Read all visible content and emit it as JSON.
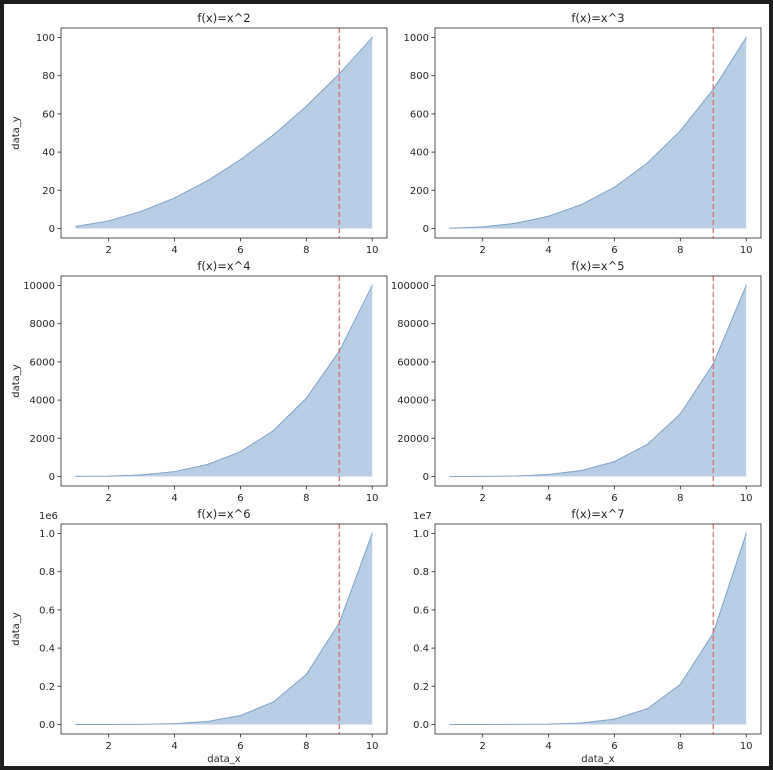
{
  "chart_data": [
    {
      "type": "area",
      "title": "f(x)=x^2",
      "xlabel": "",
      "ylabel": "data_y",
      "x": [
        1,
        2,
        3,
        4,
        5,
        6,
        7,
        8,
        9,
        10
      ],
      "y": [
        1,
        4,
        9,
        16,
        25,
        36,
        49,
        64,
        81,
        100
      ],
      "xlim": [
        0.55,
        10.45
      ],
      "ylim": [
        -5,
        105
      ],
      "xticks": [
        2,
        4,
        6,
        8,
        10
      ],
      "yticks": [
        0,
        20,
        40,
        60,
        80,
        100
      ],
      "ytick_labels": [
        "0",
        "20",
        "40",
        "60",
        "80",
        "100"
      ],
      "y_offset_label": "",
      "vline_x": 9,
      "grid": false
    },
    {
      "type": "area",
      "title": "f(x)=x^3",
      "xlabel": "",
      "ylabel": "",
      "x": [
        1,
        2,
        3,
        4,
        5,
        6,
        7,
        8,
        9,
        10
      ],
      "y": [
        1,
        8,
        27,
        64,
        125,
        216,
        343,
        512,
        729,
        1000
      ],
      "xlim": [
        0.55,
        10.45
      ],
      "ylim": [
        -50,
        1050
      ],
      "xticks": [
        2,
        4,
        6,
        8,
        10
      ],
      "yticks": [
        0,
        200,
        400,
        600,
        800,
        1000
      ],
      "ytick_labels": [
        "0",
        "200",
        "400",
        "600",
        "800",
        "1000"
      ],
      "y_offset_label": "",
      "vline_x": 9,
      "grid": false
    },
    {
      "type": "area",
      "title": "f(x)=x^4",
      "xlabel": "",
      "ylabel": "data_y",
      "x": [
        1,
        2,
        3,
        4,
        5,
        6,
        7,
        8,
        9,
        10
      ],
      "y": [
        1,
        16,
        81,
        256,
        625,
        1296,
        2401,
        4096,
        6561,
        10000
      ],
      "xlim": [
        0.55,
        10.45
      ],
      "ylim": [
        -500,
        10500
      ],
      "xticks": [
        2,
        4,
        6,
        8,
        10
      ],
      "yticks": [
        0,
        2000,
        4000,
        6000,
        8000,
        10000
      ],
      "ytick_labels": [
        "0",
        "2000",
        "4000",
        "6000",
        "8000",
        "10000"
      ],
      "y_offset_label": "",
      "vline_x": 9,
      "grid": false
    },
    {
      "type": "area",
      "title": "f(x)=x^5",
      "xlabel": "",
      "ylabel": "",
      "x": [
        1,
        2,
        3,
        4,
        5,
        6,
        7,
        8,
        9,
        10
      ],
      "y": [
        1,
        32,
        243,
        1024,
        3125,
        7776,
        16807,
        32768,
        59049,
        100000
      ],
      "xlim": [
        0.55,
        10.45
      ],
      "ylim": [
        -5000,
        105000
      ],
      "xticks": [
        2,
        4,
        6,
        8,
        10
      ],
      "yticks": [
        0,
        20000,
        40000,
        60000,
        80000,
        100000
      ],
      "ytick_labels": [
        "0",
        "20000",
        "40000",
        "60000",
        "80000",
        "100000"
      ],
      "y_offset_label": "",
      "vline_x": 9,
      "grid": false
    },
    {
      "type": "area",
      "title": "f(x)=x^6",
      "xlabel": "data_x",
      "ylabel": "data_y",
      "x": [
        1,
        2,
        3,
        4,
        5,
        6,
        7,
        8,
        9,
        10
      ],
      "y": [
        1,
        64,
        729,
        4096,
        15625,
        46656,
        117649,
        262144,
        531441,
        1000000
      ],
      "xlim": [
        0.55,
        10.45
      ],
      "ylim": [
        -50000,
        1050000
      ],
      "xticks": [
        2,
        4,
        6,
        8,
        10
      ],
      "yticks": [
        0,
        200000,
        400000,
        600000,
        800000,
        1000000
      ],
      "ytick_labels": [
        "0.0",
        "0.2",
        "0.4",
        "0.6",
        "0.8",
        "1.0"
      ],
      "y_offset_label": "1e6",
      "vline_x": 9,
      "grid": false
    },
    {
      "type": "area",
      "title": "f(x)=x^7",
      "xlabel": "data_x",
      "ylabel": "",
      "x": [
        1,
        2,
        3,
        4,
        5,
        6,
        7,
        8,
        9,
        10
      ],
      "y": [
        1,
        128,
        2187,
        16384,
        78125,
        279936,
        823543,
        2097152,
        4782969,
        10000000
      ],
      "xlim": [
        0.55,
        10.45
      ],
      "ylim": [
        -500000,
        10500000
      ],
      "xticks": [
        2,
        4,
        6,
        8,
        10
      ],
      "yticks": [
        0,
        2000000,
        4000000,
        6000000,
        8000000,
        10000000
      ],
      "ytick_labels": [
        "0.0",
        "0.2",
        "0.4",
        "0.6",
        "0.8",
        "1.0"
      ],
      "y_offset_label": "1e7",
      "vline_x": 9,
      "grid": false
    }
  ],
  "colors": {
    "fill": "#b8cee5",
    "line": "#7ea3c7",
    "vline": "#e06666",
    "axis": "#262626"
  }
}
